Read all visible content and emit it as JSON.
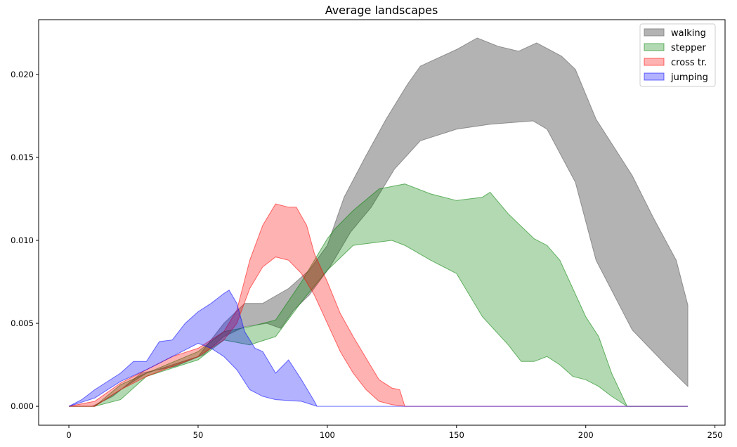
{
  "chart_data": {
    "type": "area",
    "title": "Average landscapes",
    "xlabel": "",
    "ylabel": "",
    "xlim": [
      -11.7,
      253.9
    ],
    "ylim": [
      -0.00114,
      0.0233
    ],
    "xticks": [
      0,
      50,
      100,
      150,
      200,
      250
    ],
    "xtick_labels": [
      "0",
      "50",
      "100",
      "150",
      "200",
      "250"
    ],
    "yticks": [
      0,
      0.005,
      0.01,
      0.015,
      0.02
    ],
    "ytick_labels": [
      "0.000",
      "0.005",
      "0.010",
      "0.015",
      "0.020"
    ],
    "grid": false,
    "legend_placement": "top-right",
    "series": [
      {
        "name": "walking",
        "color": "#808080",
        "alpha": 0.6,
        "upper": [
          [
            0,
            0
          ],
          [
            10,
            0
          ],
          [
            20,
            0.001
          ],
          [
            30,
            0.002
          ],
          [
            40,
            0.0025
          ],
          [
            50,
            0.003
          ],
          [
            60,
            0.005
          ],
          [
            68,
            0.0062
          ],
          [
            75,
            0.0062
          ],
          [
            85,
            0.0071
          ],
          [
            93,
            0.0082
          ],
          [
            100,
            0.0097
          ],
          [
            106.5,
            0.0126
          ],
          [
            114.6,
            0.015
          ],
          [
            122.7,
            0.0173
          ],
          [
            131,
            0.0194
          ],
          [
            136,
            0.0205
          ],
          [
            150,
            0.0215
          ],
          [
            158,
            0.0222
          ],
          [
            166,
            0.0217
          ],
          [
            174,
            0.0214
          ],
          [
            181,
            0.0219
          ],
          [
            190.6,
            0.0211
          ],
          [
            196,
            0.0203
          ],
          [
            204,
            0.0173
          ],
          [
            218,
            0.0139
          ],
          [
            226,
            0.0114
          ],
          [
            235,
            0.0088
          ],
          [
            239.5,
            0.0061
          ]
        ],
        "lower": [
          [
            0,
            0
          ],
          [
            9,
            0
          ],
          [
            17,
            0.0006
          ],
          [
            28,
            0.002
          ],
          [
            41,
            0.0024
          ],
          [
            52,
            0.0031
          ],
          [
            60,
            0.0042
          ],
          [
            68,
            0.0048
          ],
          [
            76.6,
            0.005
          ],
          [
            82,
            0.0047
          ],
          [
            87,
            0.0058
          ],
          [
            93,
            0.0067
          ],
          [
            101,
            0.0084
          ],
          [
            109,
            0.0105
          ],
          [
            117,
            0.012
          ],
          [
            126,
            0.0143
          ],
          [
            136,
            0.016
          ],
          [
            150,
            0.0167
          ],
          [
            163,
            0.017
          ],
          [
            179.6,
            0.0172
          ],
          [
            185,
            0.0167
          ],
          [
            196,
            0.0135
          ],
          [
            204,
            0.0088
          ],
          [
            218,
            0.0046
          ],
          [
            231,
            0.0025
          ],
          [
            239.5,
            0.0012
          ]
        ]
      },
      {
        "name": "stepper",
        "color": "#008000",
        "alpha": 0.3,
        "upper": [
          [
            0,
            0
          ],
          [
            10,
            0
          ],
          [
            20,
            0.0013
          ],
          [
            30,
            0.002
          ],
          [
            50,
            0.0033
          ],
          [
            60,
            0.0045
          ],
          [
            70,
            0.0048
          ],
          [
            80,
            0.0052
          ],
          [
            90,
            0.0075
          ],
          [
            100,
            0.0101
          ],
          [
            103,
            0.0107
          ],
          [
            110,
            0.0118
          ],
          [
            120,
            0.0131
          ],
          [
            130,
            0.0134
          ],
          [
            140,
            0.0128
          ],
          [
            150,
            0.0124
          ],
          [
            160,
            0.0126
          ],
          [
            163,
            0.0129
          ],
          [
            170,
            0.0116
          ],
          [
            180,
            0.0101
          ],
          [
            185,
            0.0097
          ],
          [
            190,
            0.0088
          ],
          [
            200,
            0.0054
          ],
          [
            205,
            0.0042
          ],
          [
            210,
            0.002
          ],
          [
            216,
            0
          ],
          [
            239.5,
            0
          ]
        ],
        "lower": [
          [
            0,
            0
          ],
          [
            10,
            0
          ],
          [
            20,
            0.0004
          ],
          [
            30,
            0.0018
          ],
          [
            40,
            0.0023
          ],
          [
            50,
            0.0028
          ],
          [
            60,
            0.004
          ],
          [
            70,
            0.0037
          ],
          [
            80,
            0.0042
          ],
          [
            90,
            0.0063
          ],
          [
            100,
            0.0082
          ],
          [
            110,
            0.0097
          ],
          [
            120,
            0.0099
          ],
          [
            125,
            0.01
          ],
          [
            130,
            0.0097
          ],
          [
            140,
            0.0088
          ],
          [
            150,
            0.008
          ],
          [
            160,
            0.0054
          ],
          [
            170,
            0.0037
          ],
          [
            175,
            0.0027
          ],
          [
            180,
            0.0027
          ],
          [
            185,
            0.003
          ],
          [
            190,
            0.0025
          ],
          [
            195,
            0.0018
          ],
          [
            200,
            0.0016
          ],
          [
            205,
            0.0012
          ],
          [
            210,
            0.0006
          ],
          [
            216,
            0
          ],
          [
            239.5,
            0
          ]
        ]
      },
      {
        "name": "cross tr.",
        "color": "#ff0000",
        "alpha": 0.3,
        "upper": [
          [
            0,
            0
          ],
          [
            10,
            0.0003
          ],
          [
            20,
            0.0014
          ],
          [
            30,
            0.0022
          ],
          [
            40,
            0.003
          ],
          [
            50,
            0.0035
          ],
          [
            60,
            0.0045
          ],
          [
            65,
            0.0058
          ],
          [
            70,
            0.0088
          ],
          [
            75,
            0.0109
          ],
          [
            80,
            0.0122
          ],
          [
            85,
            0.012
          ],
          [
            88,
            0.012
          ],
          [
            92,
            0.0109
          ],
          [
            95,
            0.0092
          ],
          [
            100,
            0.0075
          ],
          [
            105,
            0.0056
          ],
          [
            110,
            0.0042
          ],
          [
            115,
            0.0029
          ],
          [
            120,
            0.0016
          ],
          [
            125,
            0.0011
          ],
          [
            128,
            0.001
          ],
          [
            130,
            0
          ],
          [
            239.5,
            0
          ]
        ],
        "lower": [
          [
            0,
            0
          ],
          [
            10,
            0
          ],
          [
            20,
            0.001
          ],
          [
            30,
            0.0018
          ],
          [
            40,
            0.0024
          ],
          [
            50,
            0.003
          ],
          [
            60,
            0.004
          ],
          [
            65,
            0.005
          ],
          [
            70,
            0.0071
          ],
          [
            75,
            0.0084
          ],
          [
            80,
            0.009
          ],
          [
            85,
            0.0088
          ],
          [
            90,
            0.008
          ],
          [
            95,
            0.0067
          ],
          [
            100,
            0.005
          ],
          [
            105,
            0.0033
          ],
          [
            110,
            0.002
          ],
          [
            115,
            0.001
          ],
          [
            120,
            0.0003
          ],
          [
            125,
            0.0001
          ],
          [
            130,
            0
          ],
          [
            239.5,
            0
          ]
        ]
      },
      {
        "name": "jumping",
        "color": "#0000ff",
        "alpha": 0.3,
        "upper": [
          [
            0,
            0
          ],
          [
            5,
            0.0004
          ],
          [
            10,
            0.001
          ],
          [
            20,
            0.002
          ],
          [
            25,
            0.0027
          ],
          [
            30,
            0.0027
          ],
          [
            35,
            0.0039
          ],
          [
            40,
            0.004
          ],
          [
            45,
            0.005
          ],
          [
            50,
            0.0057
          ],
          [
            55,
            0.0062
          ],
          [
            60,
            0.0068
          ],
          [
            62,
            0.007
          ],
          [
            65,
            0.0062
          ],
          [
            68,
            0.0045
          ],
          [
            72,
            0.0035
          ],
          [
            75,
            0.0033
          ],
          [
            80,
            0.002
          ],
          [
            85,
            0.0028
          ],
          [
            90,
            0.0016
          ],
          [
            95,
            0.0003
          ],
          [
            96,
            0
          ],
          [
            239.5,
            0
          ]
        ],
        "lower": [
          [
            0,
            0
          ],
          [
            10,
            0.0005
          ],
          [
            20,
            0.0015
          ],
          [
            30,
            0.0022
          ],
          [
            40,
            0.003
          ],
          [
            50,
            0.0038
          ],
          [
            55,
            0.0035
          ],
          [
            60,
            0.003
          ],
          [
            65,
            0.0022
          ],
          [
            70,
            0.001
          ],
          [
            75,
            0.0006
          ],
          [
            80,
            0.0004
          ],
          [
            90,
            0.0003
          ],
          [
            96,
            0
          ],
          [
            239.5,
            0
          ]
        ]
      }
    ]
  }
}
